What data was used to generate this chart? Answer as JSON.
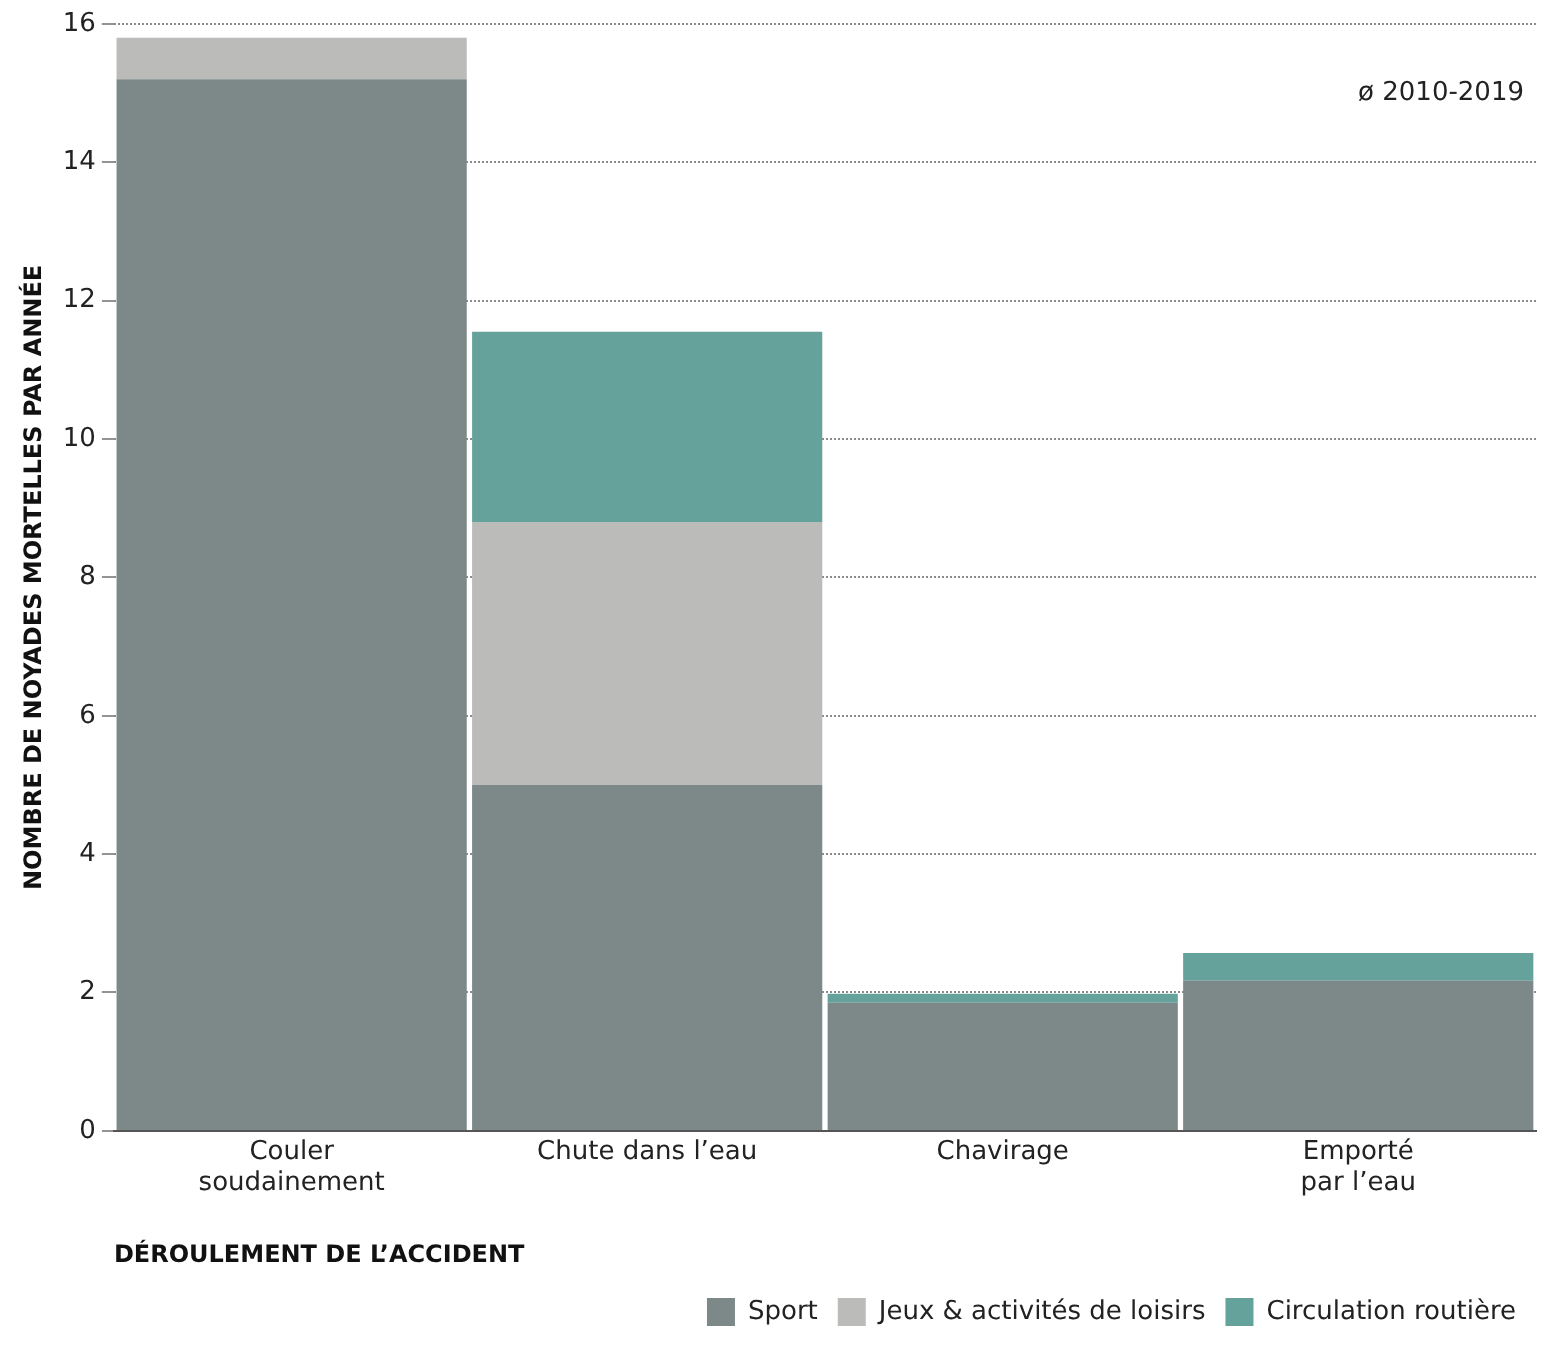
{
  "chart_data": {
    "type": "bar",
    "stacked": true,
    "categories": [
      "Couler\nsoudainement",
      "Chute dans l’eau",
      "Chavirage",
      "Emporté\npar l’eau"
    ],
    "series": [
      {
        "name": "Sport",
        "color": "#7d8889",
        "values": [
          15.2,
          5.0,
          1.85,
          2.17
        ]
      },
      {
        "name": "Jeux & activités de loisirs",
        "color": "#bbbbb9",
        "values": [
          0.6,
          3.8,
          null,
          null
        ]
      },
      {
        "name": "Circulation routière",
        "color": "#65a29c",
        "values": [
          null,
          2.75,
          0.13,
          0.4
        ]
      }
    ],
    "xlabel": "DÉROULEMENT DE L’ACCIDENT",
    "ylabel": "NOMBRE DE NOYADES MORTELLES PAR ANNÉE",
    "ylim": [
      0,
      16
    ],
    "yticks": [
      0,
      2,
      4,
      6,
      8,
      10,
      12,
      14,
      16
    ],
    "grid": "y",
    "legend": "bottom right",
    "annotations": [
      "ø 2010-2019"
    ]
  }
}
